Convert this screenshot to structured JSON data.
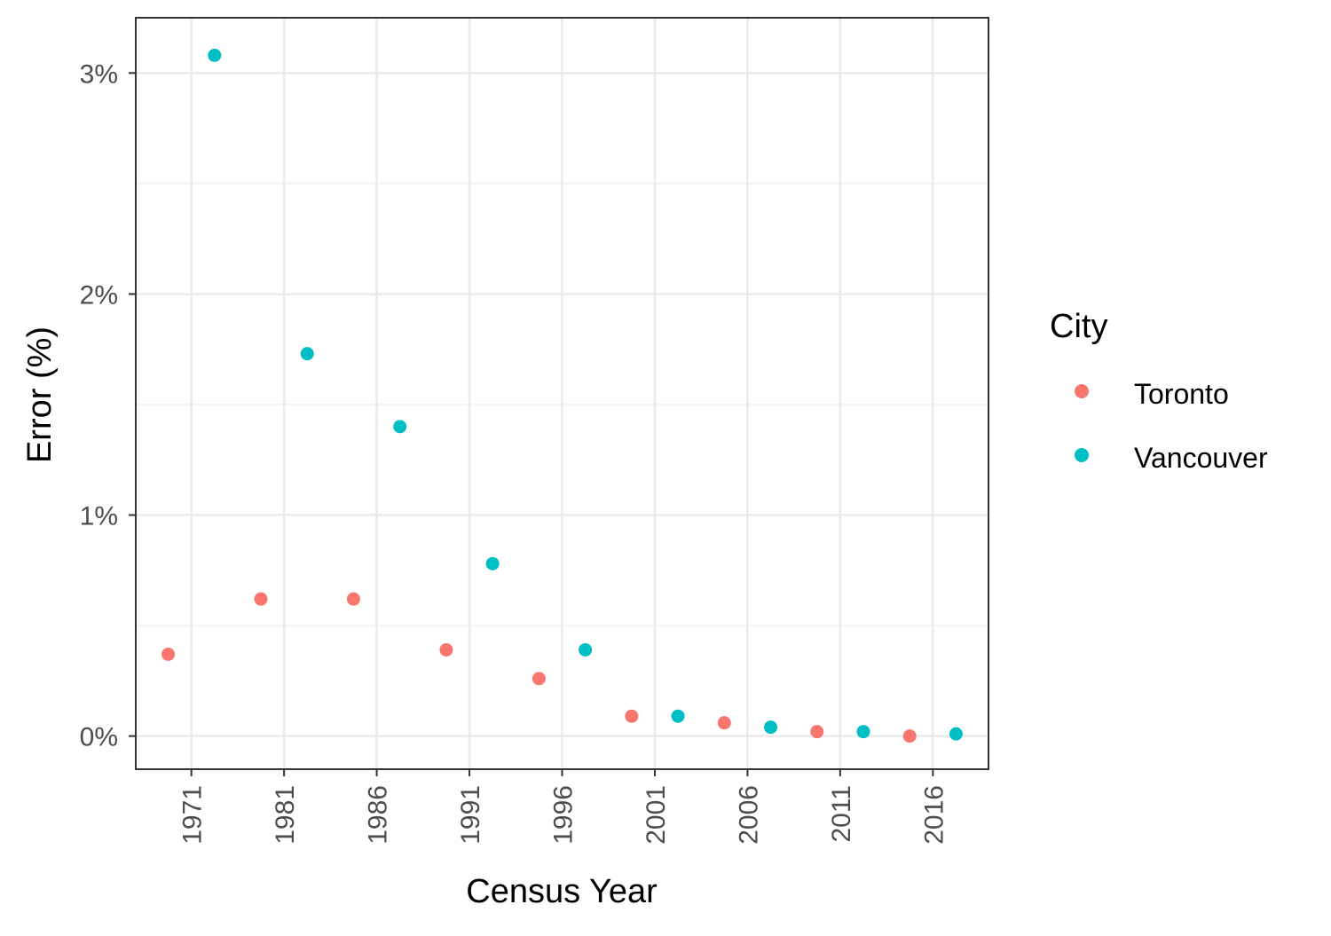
{
  "chart_data": {
    "type": "scatter",
    "title": "",
    "xlabel": "Census Year",
    "ylabel": "Error (%)",
    "categories": [
      "1971",
      "1981",
      "1986",
      "1991",
      "1996",
      "2001",
      "2006",
      "2011",
      "2016"
    ],
    "y_ticks": [
      "0%",
      "1%",
      "2%",
      "3%"
    ],
    "y_tick_values": [
      0,
      1,
      2,
      3
    ],
    "ylim": [
      -0.15,
      3.25
    ],
    "grid": true,
    "legend": {
      "title": "City",
      "placement": "right"
    },
    "series": [
      {
        "name": "Toronto",
        "color": "#F8766D",
        "values": [
          0.37,
          0.62,
          0.62,
          0.39,
          0.26,
          0.09,
          0.06,
          0.02,
          0.0
        ]
      },
      {
        "name": "Vancouver",
        "color": "#00BFC4",
        "values": [
          3.08,
          1.73,
          1.4,
          0.78,
          0.39,
          0.09,
          0.04,
          0.02,
          0.01
        ]
      }
    ]
  }
}
